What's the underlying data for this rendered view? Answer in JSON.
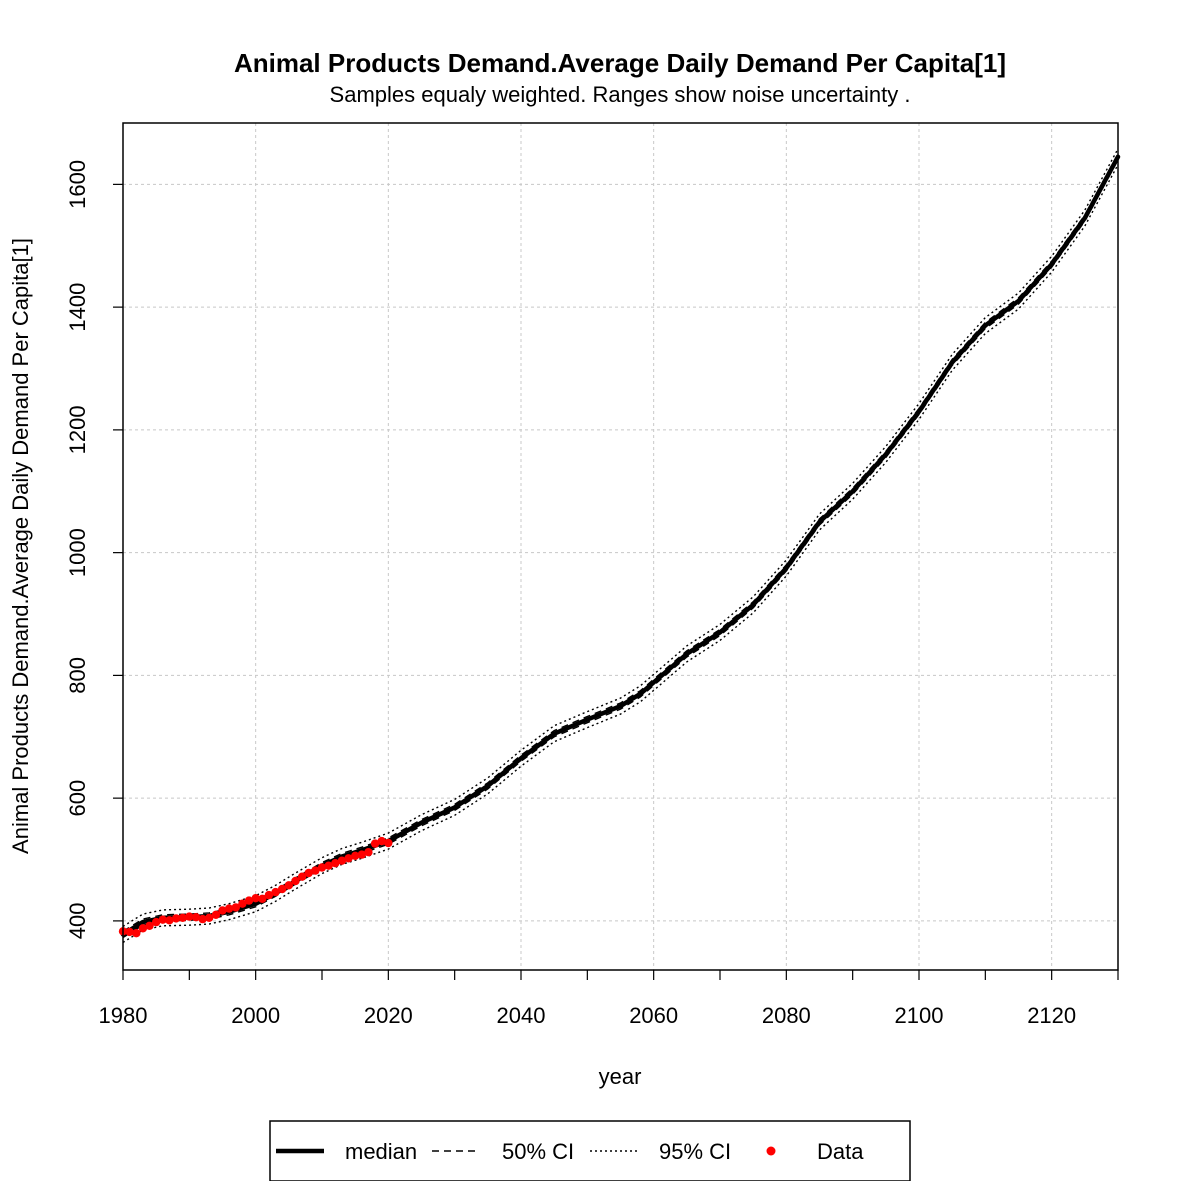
{
  "chart_data": {
    "type": "line",
    "title": "Animal Products Demand.Average Daily Demand Per Capita[1]",
    "subtitle": "Samples equaly weighted. Ranges show  noise uncertainty .",
    "xlabel": "year",
    "ylabel": "Animal Products Demand.Average Daily Demand Per Capita[1]",
    "xlim": [
      1980,
      2130
    ],
    "ylim": [
      320,
      1700
    ],
    "x_ticks": [
      1980,
      2000,
      2020,
      2040,
      2060,
      2080,
      2100,
      2120
    ],
    "y_ticks": [
      400,
      600,
      800,
      1000,
      1200,
      1400,
      1600
    ],
    "grid": true,
    "legend_position": "bottom",
    "series": [
      {
        "name": "median",
        "style": "solid",
        "color": "#000000",
        "x": [
          1980,
          1983,
          1986,
          1990,
          1993,
          1996,
          2000,
          2003,
          2006,
          2010,
          2013,
          2016,
          2020,
          2025,
          2030,
          2035,
          2040,
          2045,
          2050,
          2055,
          2058,
          2065,
          2070,
          2075,
          2080,
          2085,
          2090,
          2095,
          2100,
          2105,
          2110,
          2115,
          2120,
          2125,
          2130
        ],
        "values": [
          378,
          398,
          405,
          406,
          408,
          415,
          428,
          445,
          465,
          490,
          505,
          515,
          530,
          560,
          585,
          620,
          665,
          705,
          728,
          750,
          770,
          835,
          870,
          915,
          975,
          1050,
          1100,
          1160,
          1230,
          1310,
          1370,
          1410,
          1470,
          1545,
          1645
        ]
      },
      {
        "name": "50% CI",
        "style": "dashed",
        "color": "#000000",
        "band_halfwidth": 5
      },
      {
        "name": "95% CI",
        "style": "dotted",
        "color": "#000000",
        "band_halfwidth": 13
      },
      {
        "name": "Data",
        "style": "points",
        "color": "#ff0000",
        "x": [
          1980,
          1981,
          1982,
          1983,
          1984,
          1985,
          1986,
          1987,
          1988,
          1989,
          1990,
          1991,
          1992,
          1993,
          1994,
          1995,
          1996,
          1997,
          1998,
          1999,
          2000,
          2001,
          2002,
          2003,
          2004,
          2005,
          2006,
          2007,
          2008,
          2009,
          2010,
          2011,
          2012,
          2013,
          2014,
          2015,
          2016,
          2017,
          2018,
          2019,
          2020
        ],
        "values": [
          383,
          382,
          380,
          388,
          392,
          398,
          402,
          401,
          404,
          405,
          407,
          406,
          403,
          405,
          410,
          417,
          420,
          422,
          428,
          433,
          437,
          436,
          442,
          447,
          452,
          458,
          465,
          472,
          478,
          482,
          487,
          490,
          494,
          498,
          502,
          506,
          508,
          512,
          526,
          530,
          527
        ]
      }
    ]
  },
  "legend": {
    "items": [
      {
        "label": "median"
      },
      {
        "label": "50% CI"
      },
      {
        "label": "95% CI"
      },
      {
        "label": "Data"
      }
    ]
  }
}
